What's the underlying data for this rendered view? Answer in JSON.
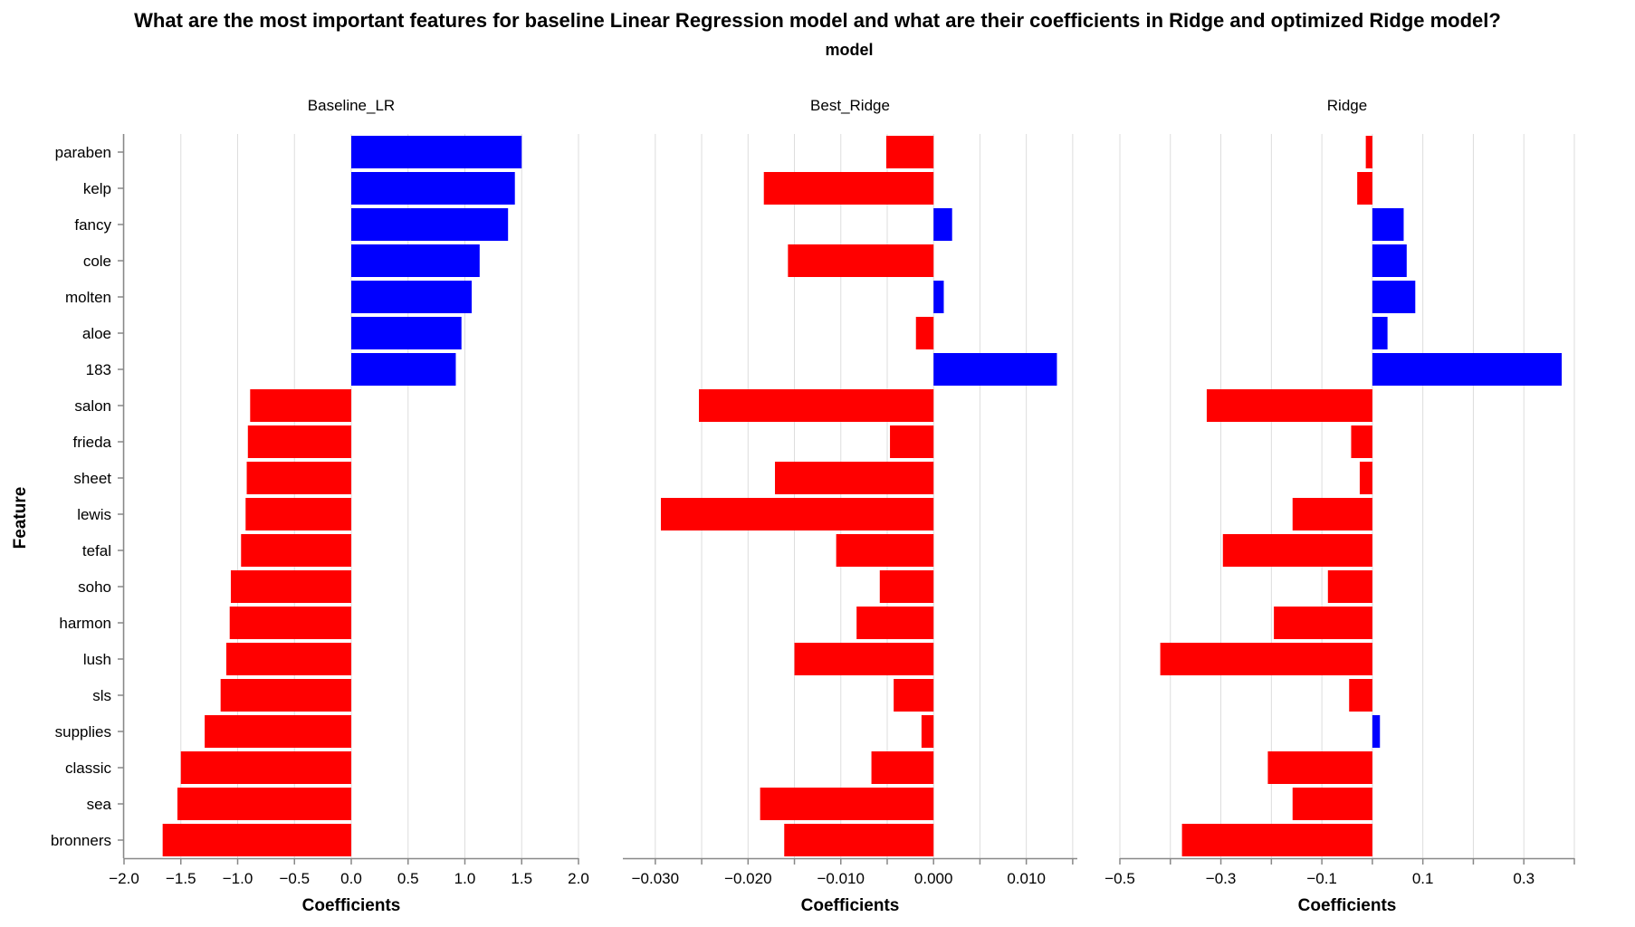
{
  "chart_data": {
    "type": "bar",
    "title": "What are the most important features for baseline Linear Regression model and what are their coefficients in Ridge and optimized Ridge model?",
    "facet_title": "model",
    "ylabel": "Feature",
    "xlabel": "Coefficients",
    "colors": {
      "positive": "#0000ff",
      "negative": "#ff0000"
    },
    "features": [
      "paraben",
      "kelp",
      "fancy",
      "cole",
      "molten",
      "aloe",
      "183",
      "salon",
      "frieda",
      "sheet",
      "lewis",
      "tefal",
      "soho",
      "harmon",
      "lush",
      "sls",
      "supplies",
      "classic",
      "sea",
      "bronners"
    ],
    "panels": [
      {
        "name": "Baseline_LR",
        "xlim": [
          -2.0,
          2.0
        ],
        "ticks": [
          -2.0,
          -1.5,
          -1.0,
          -0.5,
          0.0,
          0.5,
          1.0,
          1.5,
          2.0
        ],
        "tick_labels": [
          "−2.0",
          "−1.5",
          "−1.0",
          "−0.5",
          "0.0",
          "0.5",
          "1.0",
          "1.5",
          "2.0"
        ],
        "values": [
          1.5,
          1.44,
          1.38,
          1.13,
          1.06,
          0.97,
          0.92,
          -0.89,
          -0.91,
          -0.92,
          -0.93,
          -0.97,
          -1.06,
          -1.07,
          -1.1,
          -1.15,
          -1.29,
          -1.5,
          -1.53,
          -1.66
        ]
      },
      {
        "name": "Best_Ridge",
        "xlim": [
          -0.0335,
          0.0155
        ],
        "ticks": [
          -0.03,
          -0.025,
          -0.02,
          -0.015,
          -0.01,
          -0.005,
          0.0,
          0.005,
          0.01,
          0.015
        ],
        "tick_labels": [
          "−0.030",
          "",
          "−0.020",
          "",
          "−0.010",
          "",
          "0.000",
          "",
          "0.010",
          ""
        ],
        "values": [
          -0.0051,
          -0.0183,
          0.002,
          -0.0157,
          0.0011,
          -0.0019,
          0.0133,
          -0.0253,
          -0.0047,
          -0.0171,
          -0.0294,
          -0.0105,
          -0.0058,
          -0.0083,
          -0.015,
          -0.0043,
          -0.0013,
          -0.0067,
          -0.0187,
          -0.0161
        ]
      },
      {
        "name": "Ridge",
        "xlim": [
          -0.5,
          0.4
        ],
        "ticks": [
          -0.5,
          -0.4,
          -0.3,
          -0.2,
          -0.1,
          0.0,
          0.1,
          0.2,
          0.3,
          0.4
        ],
        "tick_labels": [
          "−0.5",
          "",
          "−0.3",
          "",
          "−0.1",
          "",
          "0.1",
          "",
          "0.3",
          ""
        ],
        "values": [
          -0.013,
          -0.03,
          0.062,
          0.068,
          0.085,
          0.03,
          0.375,
          -0.328,
          -0.042,
          -0.025,
          -0.158,
          -0.296,
          -0.088,
          -0.195,
          -0.42,
          -0.046,
          0.015,
          -0.207,
          -0.158,
          -0.377
        ]
      }
    ]
  }
}
